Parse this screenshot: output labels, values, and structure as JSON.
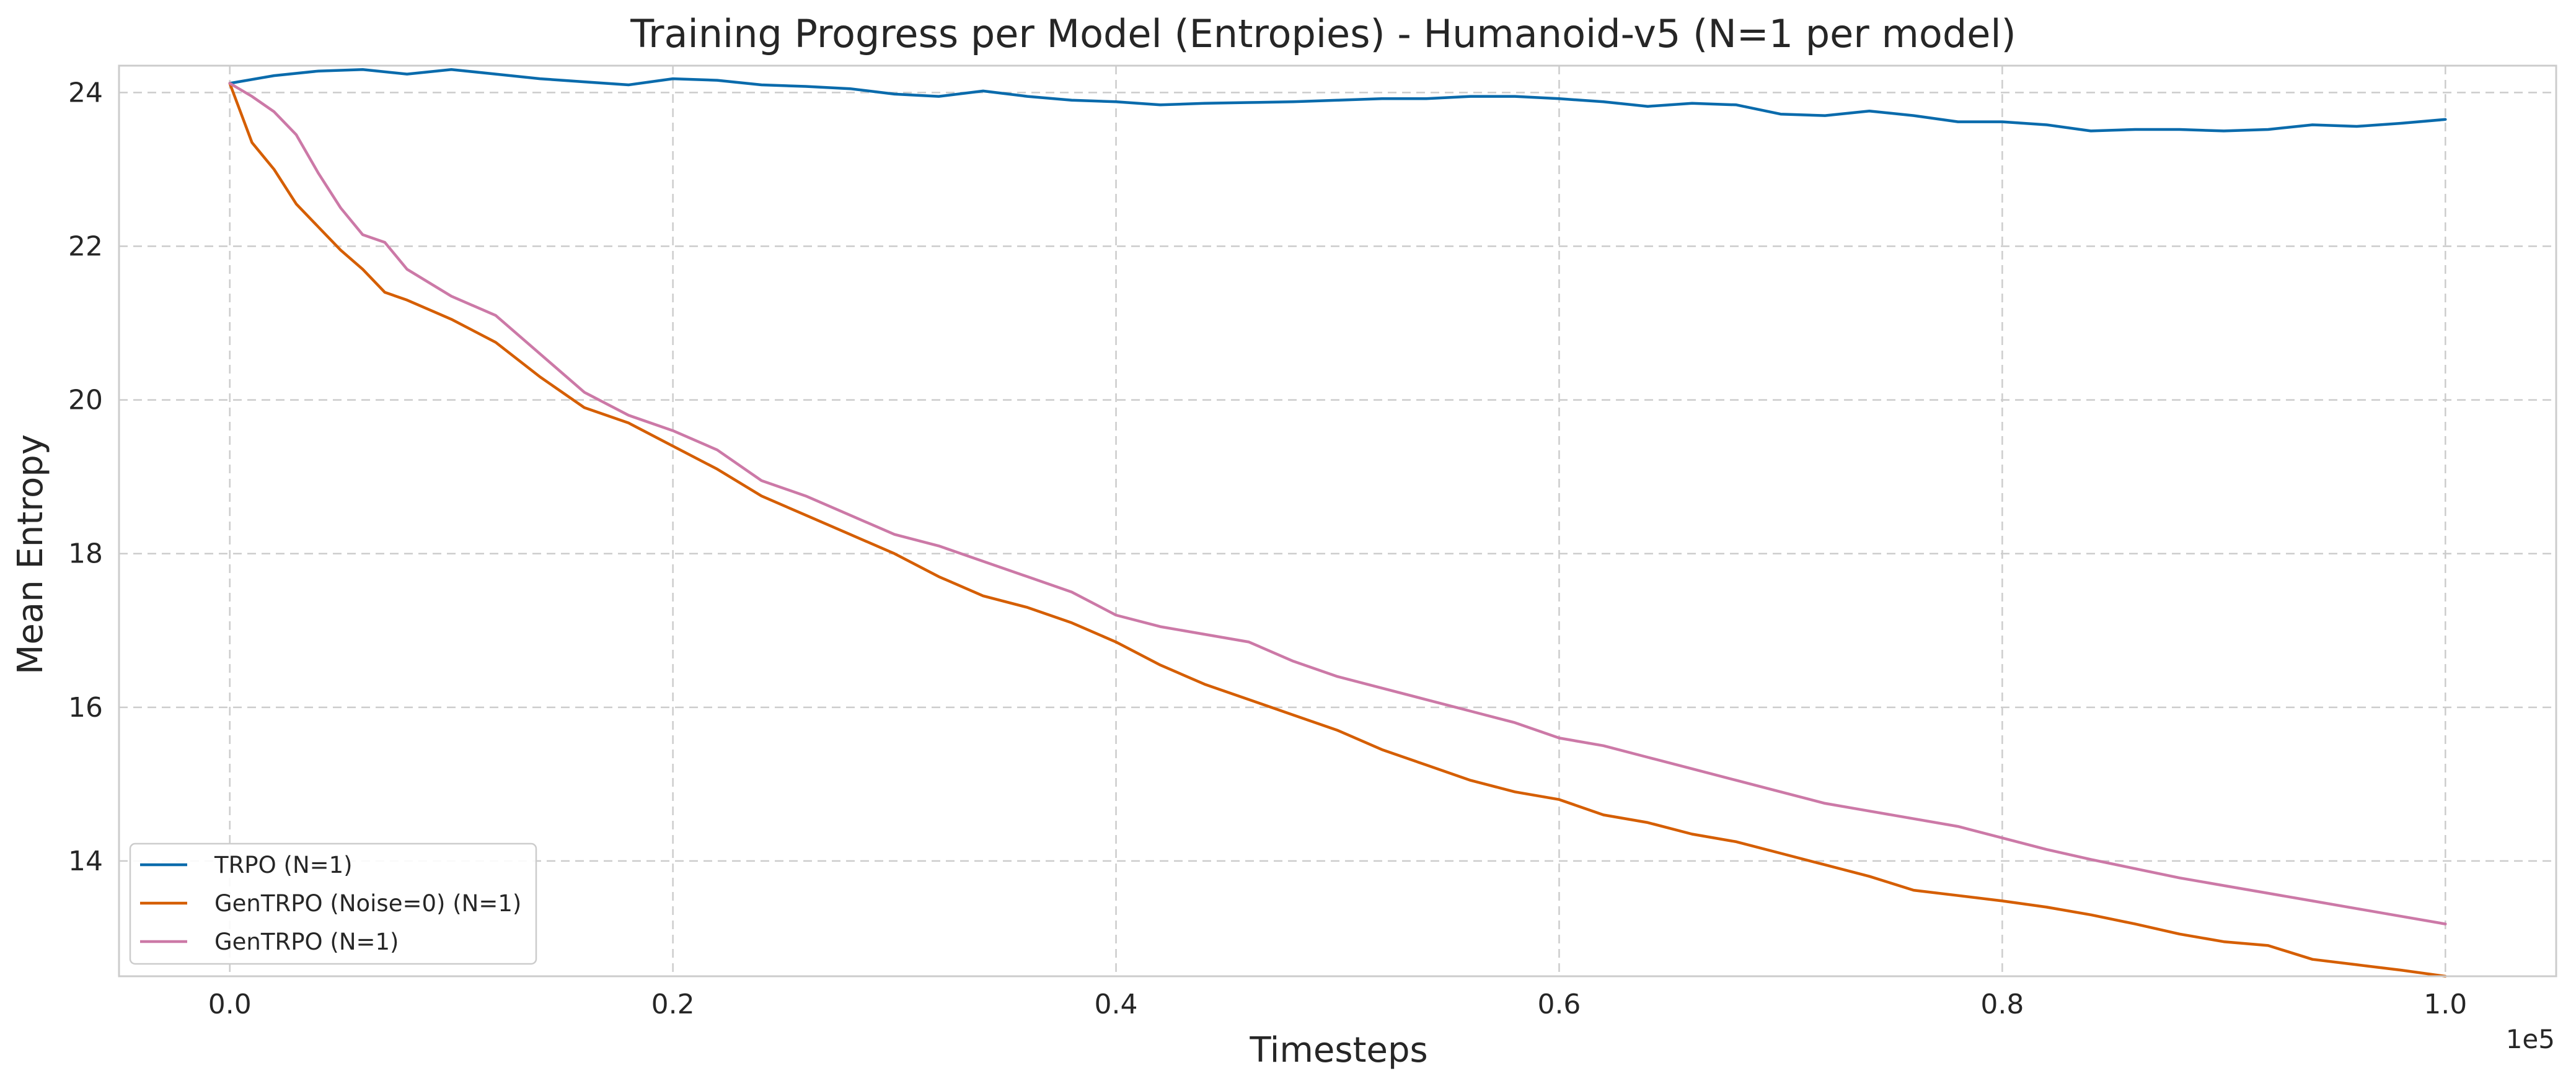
{
  "chart_data": {
    "type": "line",
    "title": "Training Progress per Model (Entropies) - Humanoid-v5 (N=1 per model)",
    "xlabel": "Timesteps",
    "ylabel": "Mean Entropy",
    "x_scale_label": "1e5",
    "xlim": [
      -0.05,
      1.05
    ],
    "ylim": [
      12.5,
      24.35
    ],
    "xticks": [
      0.0,
      0.2,
      0.4,
      0.6,
      0.8,
      1.0
    ],
    "xtick_labels": [
      "0.0",
      "0.2",
      "0.4",
      "0.6",
      "0.8",
      "1.0"
    ],
    "yticks": [
      14,
      16,
      18,
      20,
      22,
      24
    ],
    "ytick_labels": [
      "14",
      "16",
      "18",
      "20",
      "22",
      "24"
    ],
    "grid": true,
    "legend_position": "bottom-left",
    "series": [
      {
        "name": "TRPO (N=1)",
        "color": "#0a6bac",
        "x": [
          0.0,
          0.02,
          0.04,
          0.06,
          0.08,
          0.1,
          0.12,
          0.14,
          0.16,
          0.18,
          0.2,
          0.22,
          0.24,
          0.26,
          0.28,
          0.3,
          0.32,
          0.34,
          0.36,
          0.38,
          0.4,
          0.42,
          0.44,
          0.46,
          0.48,
          0.5,
          0.52,
          0.54,
          0.56,
          0.58,
          0.6,
          0.62,
          0.64,
          0.66,
          0.68,
          0.7,
          0.72,
          0.74,
          0.76,
          0.78,
          0.8,
          0.82,
          0.84,
          0.86,
          0.88,
          0.9,
          0.92,
          0.94,
          0.96,
          0.98,
          1.0
        ],
        "y": [
          24.12,
          24.22,
          24.28,
          24.3,
          24.24,
          24.3,
          24.24,
          24.18,
          24.14,
          24.1,
          24.18,
          24.16,
          24.1,
          24.08,
          24.05,
          23.98,
          23.95,
          24.02,
          23.95,
          23.9,
          23.88,
          23.84,
          23.86,
          23.87,
          23.88,
          23.9,
          23.92,
          23.92,
          23.95,
          23.95,
          23.92,
          23.88,
          23.82,
          23.86,
          23.84,
          23.72,
          23.7,
          23.76,
          23.7,
          23.62,
          23.62,
          23.58,
          23.5,
          23.52,
          23.52,
          23.5,
          23.52,
          23.58,
          23.56,
          23.6,
          23.65
        ]
      },
      {
        "name": "GenTRPO (Noise=0) (N=1)",
        "color": "#d55e00",
        "x": [
          0.0,
          0.01,
          0.02,
          0.03,
          0.04,
          0.05,
          0.06,
          0.07,
          0.08,
          0.1,
          0.12,
          0.14,
          0.16,
          0.18,
          0.2,
          0.22,
          0.24,
          0.26,
          0.28,
          0.3,
          0.32,
          0.34,
          0.36,
          0.38,
          0.4,
          0.42,
          0.44,
          0.46,
          0.48,
          0.5,
          0.52,
          0.54,
          0.56,
          0.58,
          0.6,
          0.62,
          0.64,
          0.66,
          0.68,
          0.7,
          0.72,
          0.74,
          0.76,
          0.78,
          0.8,
          0.82,
          0.84,
          0.86,
          0.88,
          0.9,
          0.92,
          0.94,
          0.96,
          0.98,
          1.0
        ],
        "y": [
          24.12,
          23.35,
          23.0,
          22.55,
          22.25,
          21.95,
          21.7,
          21.4,
          21.3,
          21.05,
          20.75,
          20.3,
          19.9,
          19.7,
          19.4,
          19.1,
          18.75,
          18.5,
          18.25,
          18.0,
          17.7,
          17.45,
          17.3,
          17.1,
          16.85,
          16.55,
          16.3,
          16.1,
          15.9,
          15.7,
          15.45,
          15.25,
          15.05,
          14.9,
          14.8,
          14.6,
          14.5,
          14.35,
          14.25,
          14.1,
          13.95,
          13.8,
          13.62,
          13.55,
          13.48,
          13.4,
          13.3,
          13.18,
          13.05,
          12.95,
          12.9,
          12.72,
          12.65,
          12.58,
          12.5
        ]
      },
      {
        "name": "GenTRPO (N=1)",
        "color": "#cc79a7",
        "x": [
          0.0,
          0.01,
          0.02,
          0.03,
          0.04,
          0.05,
          0.06,
          0.07,
          0.08,
          0.1,
          0.12,
          0.14,
          0.16,
          0.18,
          0.2,
          0.22,
          0.24,
          0.26,
          0.28,
          0.3,
          0.32,
          0.34,
          0.36,
          0.38,
          0.4,
          0.42,
          0.44,
          0.46,
          0.48,
          0.5,
          0.52,
          0.54,
          0.56,
          0.58,
          0.6,
          0.62,
          0.64,
          0.66,
          0.68,
          0.7,
          0.72,
          0.74,
          0.76,
          0.78,
          0.8,
          0.82,
          0.84,
          0.86,
          0.88,
          0.9,
          0.92,
          0.94,
          0.96,
          0.98,
          1.0
        ],
        "y": [
          24.12,
          23.95,
          23.75,
          23.45,
          22.95,
          22.5,
          22.15,
          22.05,
          21.7,
          21.35,
          21.1,
          20.6,
          20.1,
          19.8,
          19.6,
          19.35,
          18.95,
          18.75,
          18.5,
          18.25,
          18.1,
          17.9,
          17.7,
          17.5,
          17.2,
          17.05,
          16.95,
          16.85,
          16.6,
          16.4,
          16.25,
          16.1,
          15.95,
          15.8,
          15.6,
          15.5,
          15.35,
          15.2,
          15.05,
          14.9,
          14.75,
          14.65,
          14.55,
          14.45,
          14.3,
          14.15,
          14.02,
          13.9,
          13.78,
          13.68,
          13.58,
          13.48,
          13.38,
          13.28,
          13.18
        ]
      }
    ]
  }
}
